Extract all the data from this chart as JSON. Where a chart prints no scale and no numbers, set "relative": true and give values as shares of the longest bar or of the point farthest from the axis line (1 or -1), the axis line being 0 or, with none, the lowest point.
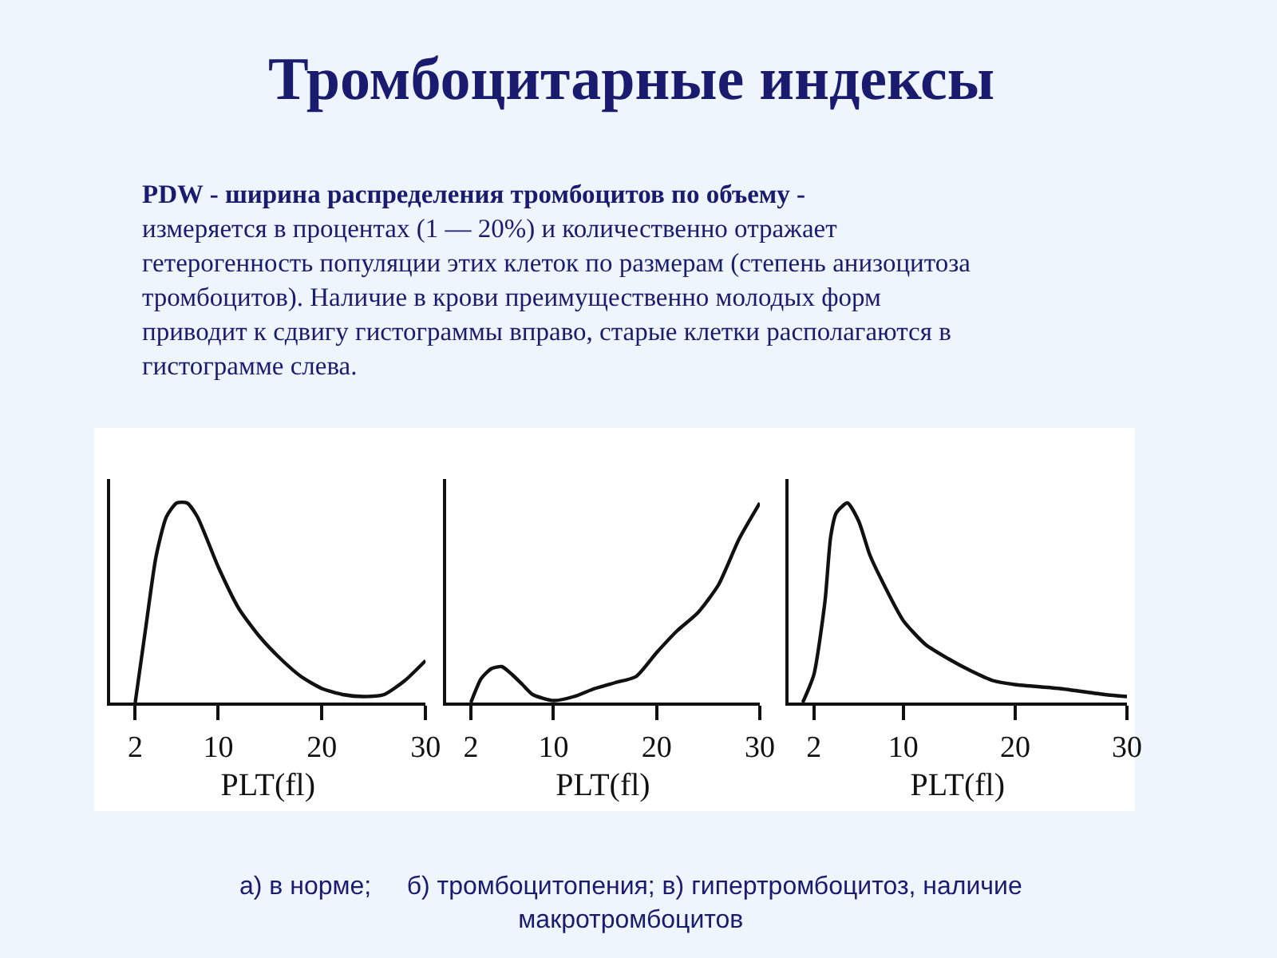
{
  "chart_data": [
    {
      "type": "line",
      "relative": true,
      "title": "Тромбоцитарные индексы",
      "subtitle": "PDW - ширина распределения тромбоцитов по объему -\nизмеряется в процентах (1 — 20%) и количественно отражает\nгетерогенность популяции этих клеток по размерам (степень анизоцитоза\nтромбоцитов). Наличие в крови преимущественно молодых форм\nприводит к сдвигу гистограммы вправо, старые клетки располагаются в\nгистограмме слева.",
      "xlabel": "PLT(fl)",
      "x": [
        2,
        3,
        4,
        5,
        6,
        7,
        8,
        10,
        12,
        14,
        16,
        18,
        20,
        22,
        24,
        26,
        28,
        30
      ],
      "series": [
        {
          "color": "#111111",
          "values": [
            0,
            0.37,
            0.73,
            0.93,
            1,
            1,
            0.93,
            0.68,
            0.47,
            0.33,
            0.22,
            0.13,
            0.07,
            0.04,
            0.03,
            0.04,
            0.11,
            0.21
          ]
        }
      ],
      "xlim": [
        -0.4,
        30
      ],
      "xticks": [
        2,
        10,
        20,
        30
      ],
      "tick_labels": "x",
      "marker": "none",
      "line_style": "solid",
      "annotations": [
        "а) в норме;     б) тромбоцитопения; в) гипертромбоцитоз, наличие\nмакротромбоцитов"
      ]
    },
    {
      "type": "line",
      "relative": true,
      "xlabel": "PLT(fl)",
      "x": [
        2,
        3,
        4,
        5,
        6,
        7,
        8,
        10,
        12,
        14,
        16,
        18,
        20,
        22,
        24,
        26,
        28,
        30
      ],
      "series": [
        {
          "color": "#111111",
          "values": [
            0,
            0.12,
            0.17,
            0.18,
            0.14,
            0.09,
            0.04,
            0.01,
            0.03,
            0.07,
            0.1,
            0.13,
            0.25,
            0.36,
            0.45,
            0.59,
            0.82,
            1
          ]
        }
      ],
      "xlim": [
        -0.4,
        30
      ],
      "xticks": [
        2,
        10,
        20,
        30
      ],
      "tick_labels": "x",
      "marker": "none",
      "line_style": "solid"
    },
    {
      "type": "line",
      "relative": true,
      "xlabel": "PLT(fl)",
      "x": [
        1,
        2,
        3,
        3.5,
        4,
        5,
        6,
        7,
        8,
        10,
        12,
        14,
        16,
        18,
        20,
        24,
        28,
        30
      ],
      "series": [
        {
          "color": "#111111",
          "values": [
            0,
            0.14,
            0.51,
            0.83,
            0.95,
            1,
            0.91,
            0.74,
            0.62,
            0.41,
            0.29,
            0.22,
            0.16,
            0.11,
            0.09,
            0.07,
            0.04,
            0.03
          ]
        }
      ],
      "xlim": [
        -0.3,
        30
      ],
      "xticks": [
        2,
        10,
        20,
        30
      ],
      "tick_labels": "x",
      "marker": "none",
      "line_style": "solid"
    }
  ]
}
